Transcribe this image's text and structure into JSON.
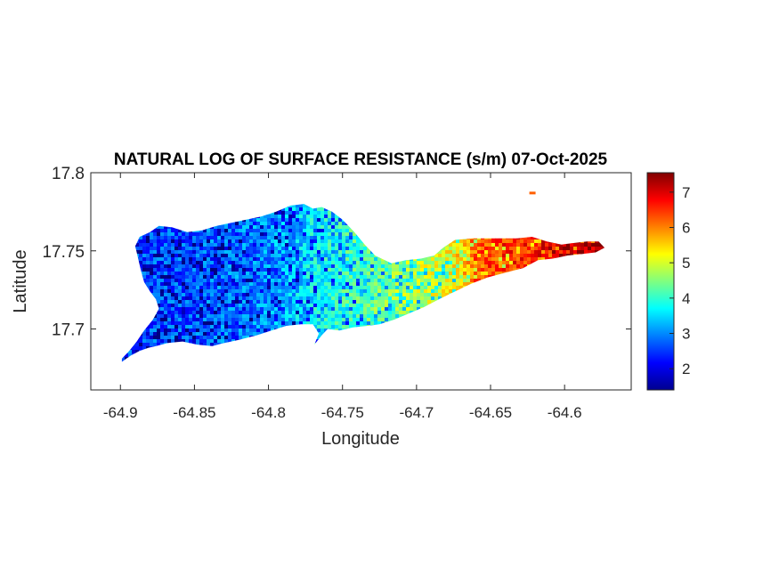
{
  "chart_data": {
    "type": "heatmap",
    "title": "NATURAL LOG OF SURFACE RESISTANCE (s/m) 07-Oct-2025",
    "xlabel": "Longitude",
    "ylabel": "Latitude",
    "xlim": [
      -64.92,
      -64.555
    ],
    "ylim": [
      17.661,
      17.8
    ],
    "xticks": [
      -64.9,
      -64.85,
      -64.8,
      -64.75,
      -64.7,
      -64.65,
      -64.6
    ],
    "xtick_labels": [
      "-64.9",
      "-64.85",
      "-64.8",
      "-64.75",
      "-64.7",
      "-64.65",
      "-64.6"
    ],
    "yticks": [
      17.7,
      17.75,
      17.8
    ],
    "ytick_labels": [
      "17.7",
      "17.75",
      "17.8"
    ],
    "colormap": "jet",
    "colorbar": {
      "range": [
        1.4,
        7.55
      ],
      "ticks": [
        2,
        3,
        4,
        5,
        6,
        7
      ],
      "tick_labels": [
        "2",
        "3",
        "4",
        "5",
        "6",
        "7"
      ]
    },
    "grid": false,
    "region_outline": [
      [
        -64.899,
        17.679
      ],
      [
        -64.893,
        17.683
      ],
      [
        -64.887,
        17.686
      ],
      [
        -64.881,
        17.688
      ],
      [
        -64.876,
        17.689
      ],
      [
        -64.868,
        17.691
      ],
      [
        -64.858,
        17.692
      ],
      [
        -64.848,
        17.69
      ],
      [
        -64.838,
        17.689
      ],
      [
        -64.83,
        17.691
      ],
      [
        -64.82,
        17.693
      ],
      [
        -64.808,
        17.696
      ],
      [
        -64.798,
        17.699
      ],
      [
        -64.788,
        17.702
      ],
      [
        -64.778,
        17.703
      ],
      [
        -64.77,
        17.703
      ],
      [
        -64.766,
        17.697
      ],
      [
        -64.769,
        17.69
      ],
      [
        -64.764,
        17.696
      ],
      [
        -64.76,
        17.7
      ],
      [
        -64.752,
        17.699
      ],
      [
        -64.743,
        17.701
      ],
      [
        -64.733,
        17.702
      ],
      [
        -64.725,
        17.703
      ],
      [
        -64.715,
        17.706
      ],
      [
        -64.705,
        17.71
      ],
      [
        -64.695,
        17.714
      ],
      [
        -64.685,
        17.719
      ],
      [
        -64.674,
        17.724
      ],
      [
        -64.663,
        17.729
      ],
      [
        -64.652,
        17.733
      ],
      [
        -64.64,
        17.736
      ],
      [
        -64.628,
        17.739
      ],
      [
        -64.618,
        17.744
      ],
      [
        -64.608,
        17.745
      ],
      [
        -64.598,
        17.747
      ],
      [
        -64.588,
        17.748
      ],
      [
        -64.579,
        17.749
      ],
      [
        -64.573,
        17.752
      ],
      [
        -64.577,
        17.756
      ],
      [
        -64.585,
        17.756
      ],
      [
        -64.594,
        17.755
      ],
      [
        -64.602,
        17.754
      ],
      [
        -64.612,
        17.756
      ],
      [
        -64.622,
        17.759
      ],
      [
        -64.632,
        17.758
      ],
      [
        -64.64,
        17.758
      ],
      [
        -64.65,
        17.758
      ],
      [
        -64.662,
        17.758
      ],
      [
        -64.674,
        17.757
      ],
      [
        -64.682,
        17.752
      ],
      [
        -64.688,
        17.747
      ],
      [
        -64.697,
        17.745
      ],
      [
        -64.707,
        17.744
      ],
      [
        -64.717,
        17.742
      ],
      [
        -64.728,
        17.747
      ],
      [
        -64.735,
        17.754
      ],
      [
        -64.742,
        17.762
      ],
      [
        -64.75,
        17.77
      ],
      [
        -64.757,
        17.775
      ],
      [
        -64.764,
        17.778
      ],
      [
        -64.77,
        17.777
      ],
      [
        -64.776,
        17.78
      ],
      [
        -64.785,
        17.779
      ],
      [
        -64.795,
        17.775
      ],
      [
        -64.805,
        17.772
      ],
      [
        -64.815,
        17.77
      ],
      [
        -64.825,
        17.768
      ],
      [
        -64.835,
        17.766
      ],
      [
        -64.845,
        17.763
      ],
      [
        -64.855,
        17.762
      ],
      [
        -64.865,
        17.765
      ],
      [
        -64.874,
        17.766
      ],
      [
        -64.88,
        17.762
      ],
      [
        -64.887,
        17.759
      ],
      [
        -64.89,
        17.753
      ],
      [
        -64.888,
        17.745
      ],
      [
        -64.886,
        17.737
      ],
      [
        -64.884,
        17.73
      ],
      [
        -64.88,
        17.724
      ],
      [
        -64.876,
        17.719
      ],
      [
        -64.874,
        17.713
      ],
      [
        -64.878,
        17.706
      ],
      [
        -64.884,
        17.699
      ],
      [
        -64.889,
        17.692
      ],
      [
        -64.894,
        17.686
      ],
      [
        -64.899,
        17.681
      ]
    ],
    "value_profile": {
      "longitude": [
        -64.9,
        -64.85,
        -64.8,
        -64.76,
        -64.73,
        -64.7,
        -64.675,
        -64.66,
        -64.64,
        -64.62,
        -64.6,
        -64.575
      ],
      "value": [
        2.6,
        2.7,
        3.0,
        3.8,
        4.3,
        4.8,
        5.2,
        6.2,
        6.5,
        6.6,
        7.3,
        7.5
      ]
    },
    "islet": {
      "longitude": -64.622,
      "latitude": 17.787,
      "value": 6.2
    }
  }
}
